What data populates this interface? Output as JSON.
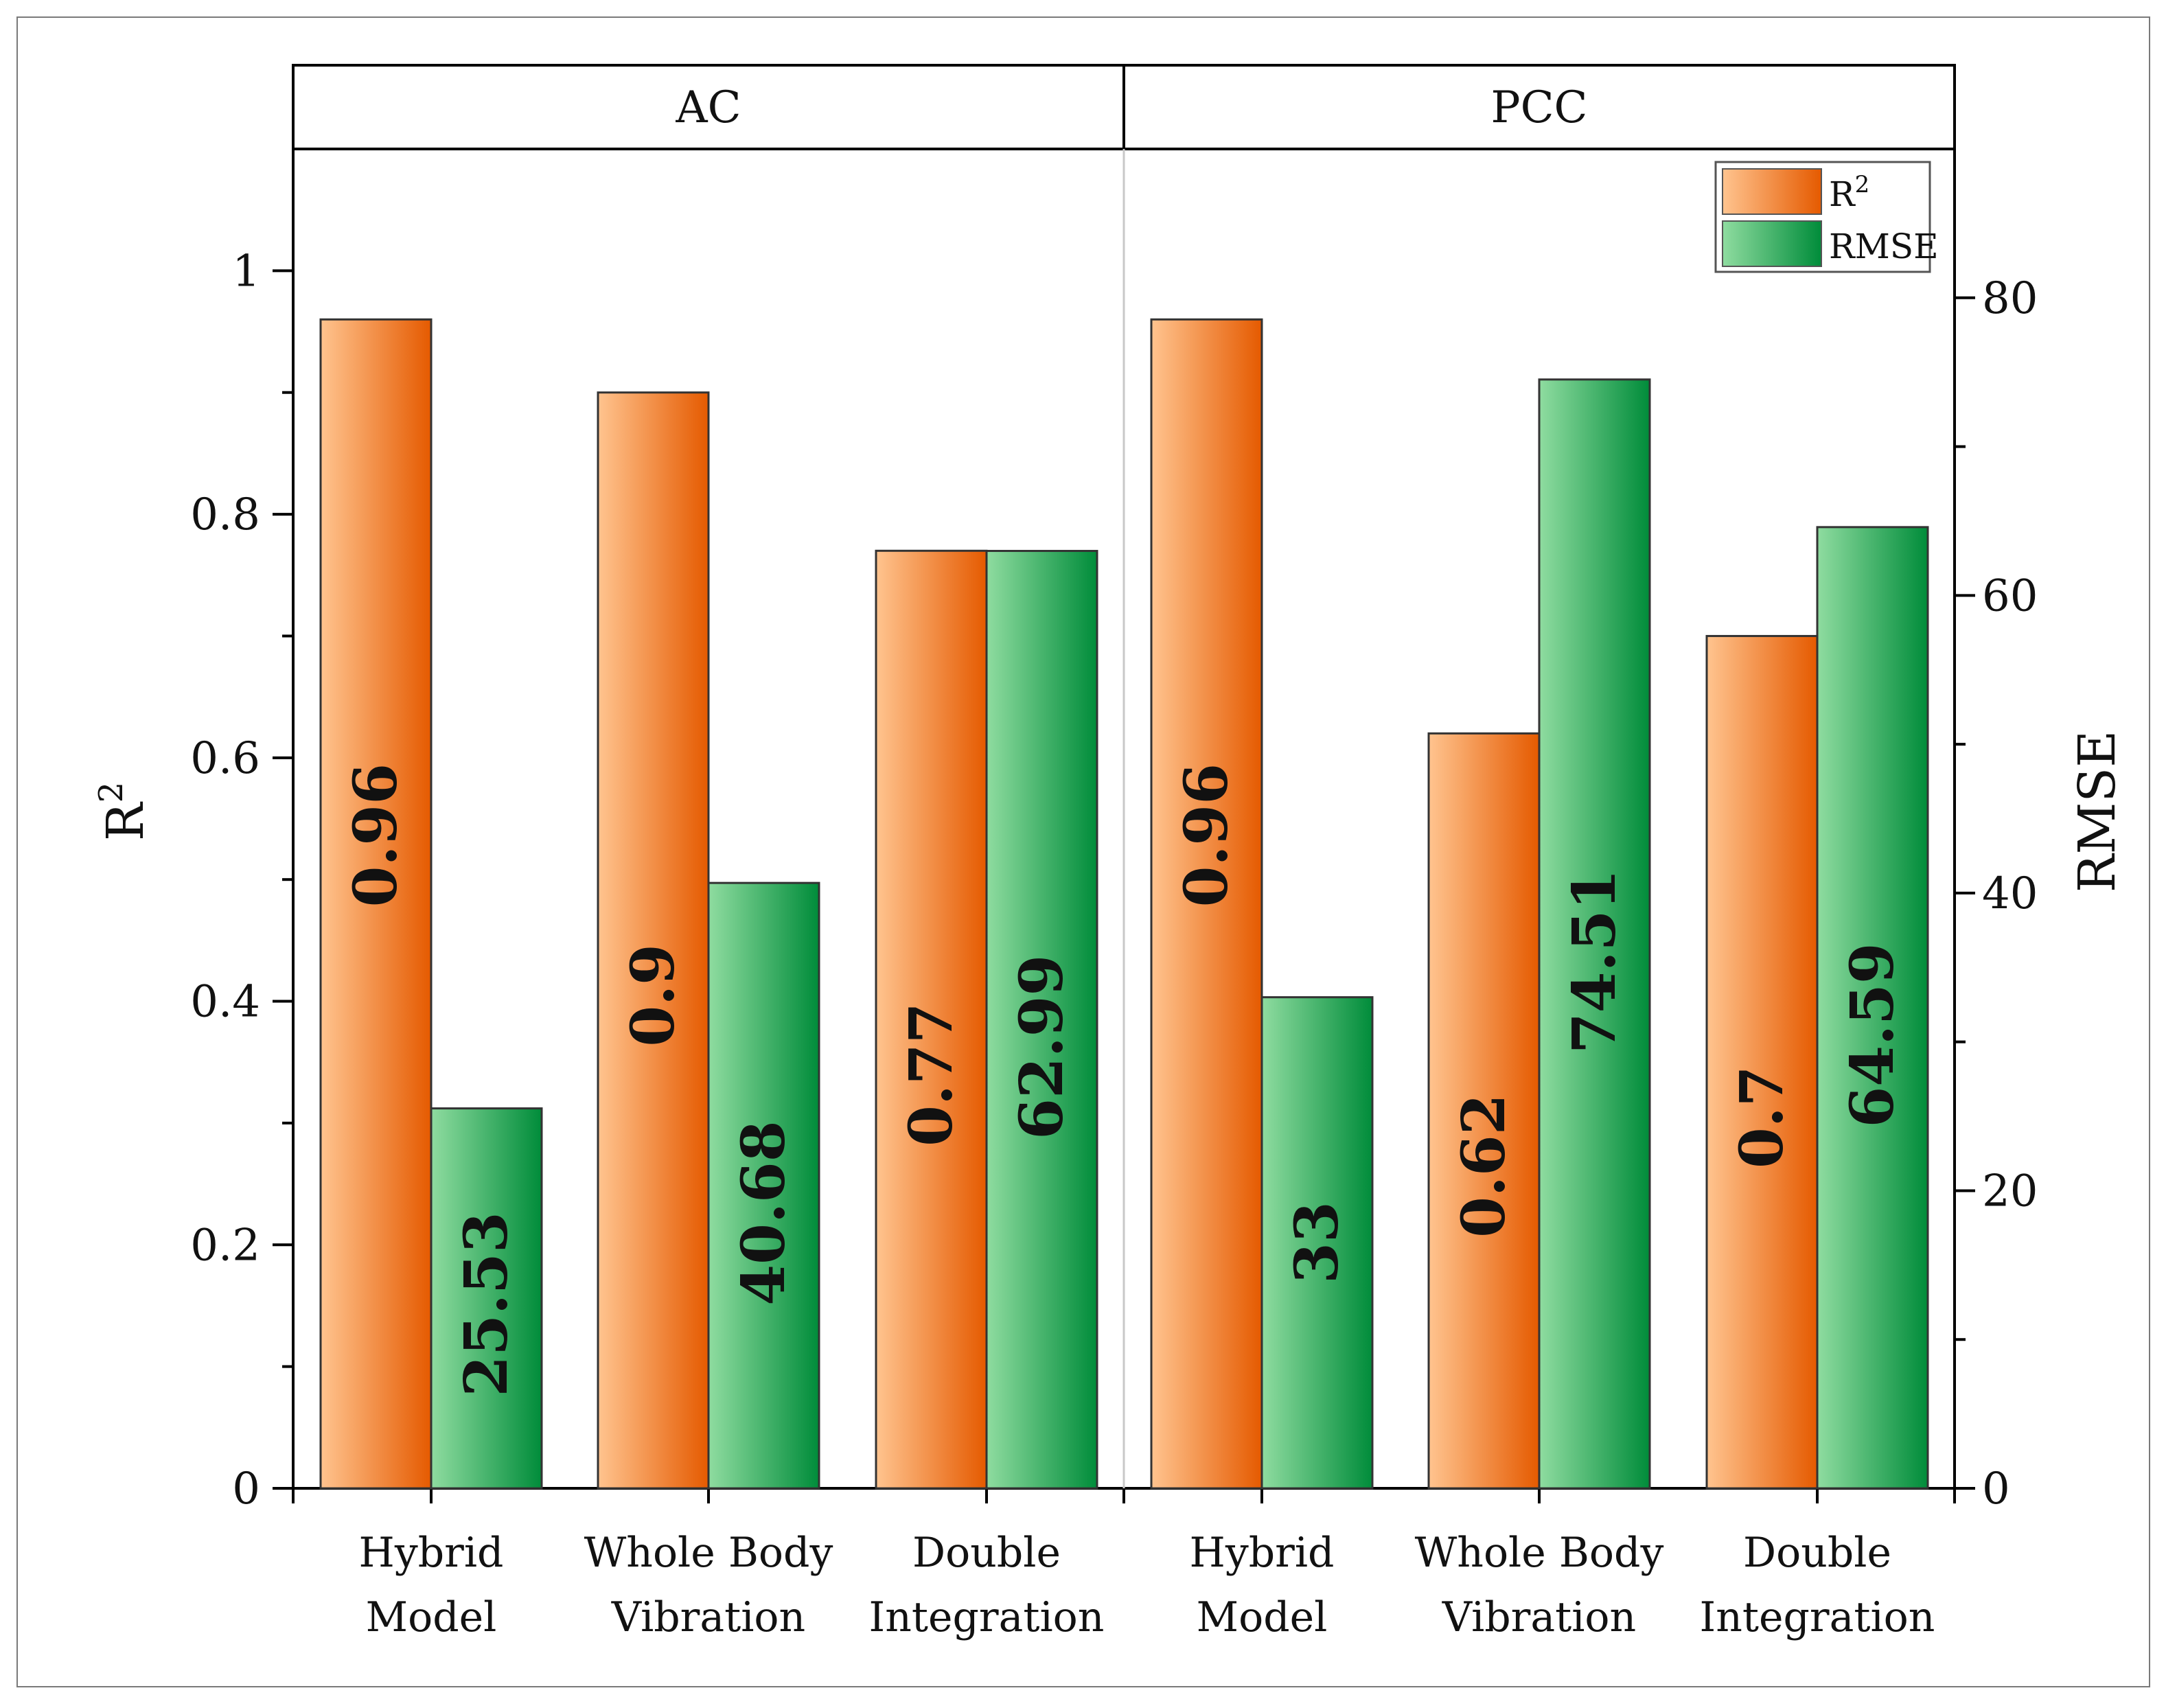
{
  "chart_data": {
    "type": "bar",
    "panels": [
      "AC",
      "PCC"
    ],
    "categories": [
      "Hybrid Model",
      "Whole Body Vibration",
      "Double Integration"
    ],
    "category_lines": [
      [
        "Hybrid",
        "Model"
      ],
      [
        "Whole Body",
        "Vibration"
      ],
      [
        "Double",
        "Integration"
      ]
    ],
    "series": [
      {
        "name": "R2",
        "axis": "left",
        "values": {
          "AC": [
            0.96,
            0.9,
            0.77
          ],
          "PCC": [
            0.96,
            0.62,
            0.7
          ]
        },
        "labels": {
          "AC": [
            "0.96",
            "0.9",
            "0.77"
          ],
          "PCC": [
            "0.96",
            "0.62",
            "0.7"
          ]
        },
        "color_light": "#ffc48f",
        "color_dark": "#e55a00"
      },
      {
        "name": "RMSE",
        "axis": "right",
        "values": {
          "AC": [
            25.53,
            40.68,
            62.99
          ],
          "PCC": [
            33,
            74.51,
            64.59
          ]
        },
        "labels": {
          "AC": [
            "25.53",
            "40.68",
            "62.99"
          ],
          "PCC": [
            "33",
            "74.51",
            "64.59"
          ]
        },
        "color_light": "#8fdca0",
        "color_dark": "#008c3a"
      }
    ],
    "y_left": {
      "label": "R",
      "label_sup": "2",
      "ylim": [
        0,
        1.1
      ],
      "ticks": [
        "0",
        "0.2",
        "0.4",
        "0.6",
        "0.8",
        "1"
      ]
    },
    "y_right": {
      "label": "RMSE",
      "ylim": [
        0,
        90
      ],
      "ticks": [
        "0",
        "20",
        "40",
        "60",
        "80"
      ]
    },
    "legend": {
      "position": "top-right",
      "entries": [
        {
          "label": "R",
          "sup": "2"
        },
        {
          "label": "RMSE"
        }
      ]
    }
  }
}
